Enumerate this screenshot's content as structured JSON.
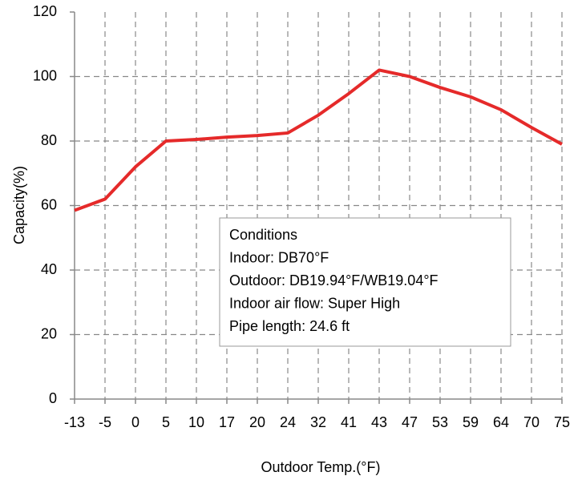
{
  "chart_data": {
    "type": "line",
    "x_label": "Outdoor Temp.(°F)",
    "y_label": "Capacity(%)",
    "categories": [
      "-13",
      "-5",
      "0",
      "5",
      "10",
      "17",
      "20",
      "24",
      "32",
      "41",
      "43",
      "47",
      "53",
      "59",
      "64",
      "70",
      "75"
    ],
    "series": [
      {
        "name": "Capacity",
        "color": "#e52a2a",
        "values": [
          58.5,
          62,
          72,
          80,
          80.5,
          81.2,
          81.7,
          82.5,
          88,
          94.7,
          102,
          100,
          96.6,
          93.7,
          89.7,
          84.2,
          79
        ]
      }
    ],
    "ylim": [
      0,
      120
    ],
    "yticks": [
      0,
      20,
      40,
      60,
      80,
      100,
      120
    ],
    "grid": true,
    "annotation": [
      "Conditions",
      "Indoor: DB70°F",
      "Outdoor: DB19.94°F/WB19.04°F",
      "Indoor air flow: Super High",
      "Pipe length: 24.6 ft"
    ]
  }
}
